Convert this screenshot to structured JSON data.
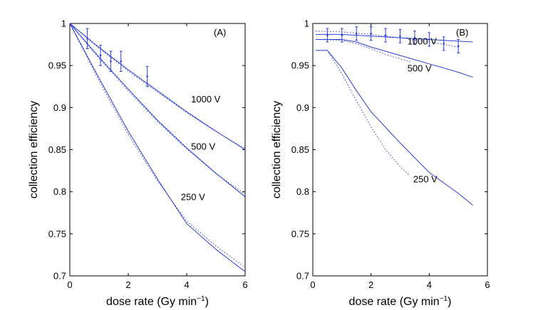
{
  "chart_data": [
    {
      "type": "line",
      "panel_label": "(A)",
      "xlabel_main": "dose rate (Gy min",
      "xlabel_sup": "−1",
      "xlabel_close": ")",
      "ylabel": "collection efficiency",
      "xlim": [
        0,
        6
      ],
      "ylim": [
        0.7,
        1.0
      ],
      "xticks": [
        "0",
        "2",
        "4",
        "6"
      ],
      "yticks": [
        "0.7",
        "0.75",
        "0.8",
        "0.85",
        "0.9",
        "0.95",
        "1"
      ],
      "series": [
        {
          "name": "1000 V",
          "style": "solid",
          "points": [
            [
              0,
              1.0
            ],
            [
              1,
              0.9715
            ],
            [
              2,
              0.945
            ],
            [
              3,
              0.92
            ],
            [
              4,
              0.895
            ],
            [
              5,
              0.872
            ],
            [
              6,
              0.85
            ]
          ]
        },
        {
          "name": "1000 V",
          "style": "dotted",
          "points": [
            [
              0,
              1.0
            ],
            [
              1,
              0.9705
            ],
            [
              2,
              0.9435
            ],
            [
              3,
              0.9185
            ],
            [
              4,
              0.894
            ],
            [
              5,
              0.8715
            ],
            [
              6,
              0.851
            ]
          ]
        },
        {
          "name": "500 V",
          "style": "solid",
          "points": [
            [
              0,
              1.0
            ],
            [
              1,
              0.96
            ],
            [
              2,
              0.922
            ],
            [
              3,
              0.885
            ],
            [
              4,
              0.852
            ],
            [
              5,
              0.822
            ],
            [
              6,
              0.794
            ]
          ]
        },
        {
          "name": "500 V",
          "style": "dotted",
          "points": [
            [
              0,
              1.0
            ],
            [
              1,
              0.9585
            ],
            [
              2,
              0.92
            ],
            [
              3,
              0.8835
            ],
            [
              4,
              0.851
            ],
            [
              5,
              0.8215
            ],
            [
              6,
              0.797
            ]
          ]
        },
        {
          "name": "250 V",
          "style": "solid",
          "points": [
            [
              0,
              1.0
            ],
            [
              1,
              0.935
            ],
            [
              2,
              0.872
            ],
            [
              3,
              0.815
            ],
            [
              4,
              0.762
            ],
            [
              5,
              0.7315
            ],
            [
              6,
              0.705
            ]
          ]
        },
        {
          "name": "250 V",
          "style": "dotted",
          "points": [
            [
              0,
              1.0
            ],
            [
              1,
              0.932
            ],
            [
              2,
              0.868
            ],
            [
              3,
              0.813
            ],
            [
              4,
              0.765
            ],
            [
              5,
              0.7355
            ],
            [
              6,
              0.71
            ]
          ]
        }
      ],
      "measurements": [
        {
          "x": 0.6,
          "y": 0.982,
          "err": 0.012
        },
        {
          "x": 1.05,
          "y": 0.962,
          "err": 0.012
        },
        {
          "x": 1.4,
          "y": 0.955,
          "err": 0.012
        },
        {
          "x": 1.75,
          "y": 0.955,
          "err": 0.012
        },
        {
          "x": 2.65,
          "y": 0.937,
          "err": 0.012
        }
      ],
      "annotations": [
        {
          "text": "1000 V",
          "x": 4.15,
          "y": 0.906
        },
        {
          "text": "500 V",
          "x": 4.15,
          "y": 0.85
        },
        {
          "text": "250 V",
          "x": 3.8,
          "y": 0.79
        }
      ]
    },
    {
      "type": "line",
      "panel_label": "(B)",
      "xlabel_main": "dose rate (Gy min",
      "xlabel_sup": "−1",
      "xlabel_close": ")",
      "ylabel": "collection efficiency",
      "xlim": [
        0,
        6
      ],
      "ylim": [
        0.7,
        1.0
      ],
      "xticks": [
        "0",
        "2",
        "4",
        "6"
      ],
      "yticks": [
        "0.7",
        "0.75",
        "0.8",
        "0.85",
        "0.9",
        "0.95",
        "1"
      ],
      "series": [
        {
          "name": "1000 V",
          "style": "solid",
          "points": [
            [
              0.1,
              0.987
            ],
            [
              1,
              0.987
            ],
            [
              2,
              0.985
            ],
            [
              3,
              0.983
            ],
            [
              4,
              0.981
            ],
            [
              5,
              0.979
            ],
            [
              5.5,
              0.978
            ]
          ]
        },
        {
          "name": "1000 V",
          "style": "dotted",
          "points": [
            [
              0.1,
              0.991
            ],
            [
              1,
              0.99
            ],
            [
              2,
              0.987
            ],
            [
              2.5,
              0.985
            ],
            [
              3,
              0.983
            ],
            [
              4,
              0.978
            ],
            [
              5,
              0.972
            ]
          ]
        },
        {
          "name": "500 V",
          "style": "solid",
          "points": [
            [
              0.1,
              0.981
            ],
            [
              1,
              0.981
            ],
            [
              1.5,
              0.978
            ],
            [
              2,
              0.972
            ],
            [
              3,
              0.962
            ],
            [
              4,
              0.952
            ],
            [
              5,
              0.942
            ],
            [
              5.5,
              0.936
            ]
          ]
        },
        {
          "name": "500 V",
          "style": "dotted",
          "points": [
            [
              0.1,
              0.981
            ],
            [
              1,
              0.98
            ],
            [
              1.5,
              0.976
            ],
            [
              2,
              0.97
            ],
            [
              2.5,
              0.963
            ],
            [
              3,
              0.958
            ],
            [
              3.4,
              0.954
            ]
          ]
        },
        {
          "name": "250 V",
          "style": "solid",
          "points": [
            [
              0.1,
              0.968
            ],
            [
              0.5,
              0.968
            ],
            [
              1,
              0.947
            ],
            [
              1.5,
              0.92
            ],
            [
              2,
              0.895
            ],
            [
              3,
              0.858
            ],
            [
              4,
              0.823
            ],
            [
              5,
              0.798
            ],
            [
              5.5,
              0.784
            ]
          ]
        },
        {
          "name": "250 V",
          "style": "dotted",
          "points": [
            [
              0.1,
              0.968
            ],
            [
              0.5,
              0.968
            ],
            [
              1,
              0.94
            ],
            [
              1.5,
              0.908
            ],
            [
              2,
              0.877
            ],
            [
              2.5,
              0.85
            ],
            [
              3,
              0.83
            ],
            [
              3.3,
              0.82
            ]
          ]
        }
      ],
      "measurements": [
        {
          "x": 0.5,
          "y": 0.986,
          "err": 0.008
        },
        {
          "x": 1.0,
          "y": 0.986,
          "err": 0.008
        },
        {
          "x": 1.5,
          "y": 0.988,
          "err": 0.008
        },
        {
          "x": 2.0,
          "y": 0.988,
          "err": 0.008
        },
        {
          "x": 2.5,
          "y": 0.986,
          "err": 0.008
        },
        {
          "x": 3.0,
          "y": 0.985,
          "err": 0.008
        },
        {
          "x": 3.5,
          "y": 0.983,
          "err": 0.008
        },
        {
          "x": 4.0,
          "y": 0.981,
          "err": 0.008
        },
        {
          "x": 4.5,
          "y": 0.976,
          "err": 0.008
        },
        {
          "x": 5.0,
          "y": 0.973,
          "err": 0.008
        }
      ],
      "annotations": [
        {
          "text": "1000 V",
          "x": 3.25,
          "y": 0.975
        },
        {
          "text": "500 V",
          "x": 3.25,
          "y": 0.943
        },
        {
          "text": "250 V",
          "x": 3.45,
          "y": 0.811
        }
      ]
    }
  ]
}
